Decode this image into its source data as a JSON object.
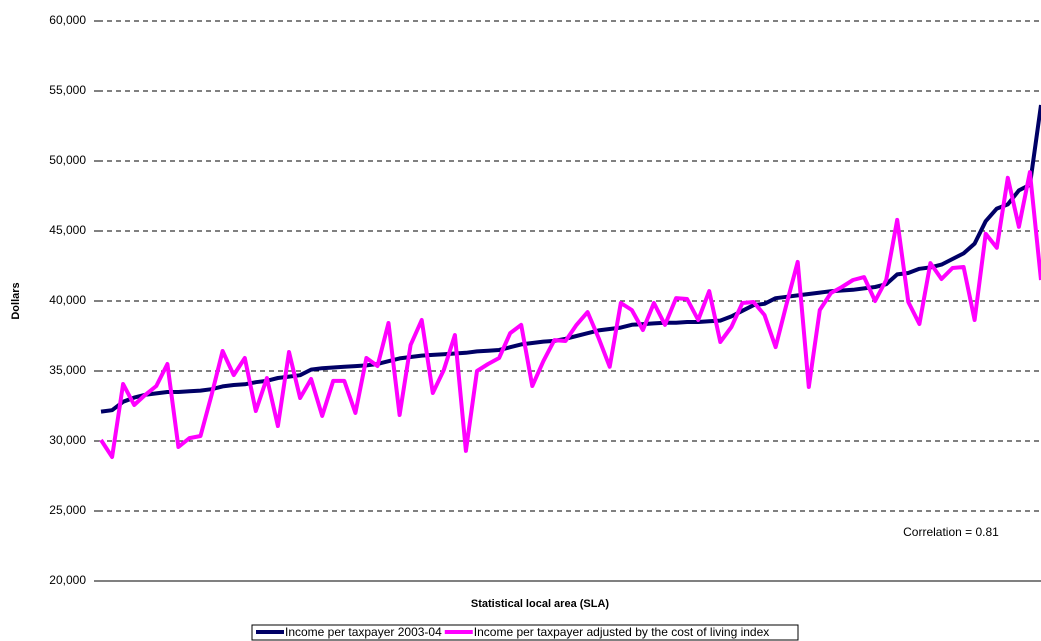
{
  "chart_data": {
    "type": "line",
    "y_label": "Dollars",
    "x_label": "Statistical local area (SLA)",
    "annotation": "Correlation = 0.81",
    "categories": [
      null,
      null,
      null,
      null,
      null,
      null,
      null,
      null,
      null,
      null,
      null,
      null,
      null,
      null,
      null,
      null,
      null,
      null,
      null,
      null,
      null,
      null,
      null,
      null,
      null,
      null,
      null,
      null,
      null,
      null,
      null,
      null,
      null,
      null,
      null,
      null,
      null,
      null,
      null,
      null,
      null,
      null,
      null,
      null,
      null,
      null,
      null,
      null,
      null,
      null,
      null,
      null,
      null,
      null,
      null,
      null,
      null,
      null,
      null,
      null,
      null,
      null,
      null,
      null,
      null,
      null,
      null,
      null,
      null,
      null,
      null,
      null,
      null,
      null,
      null,
      null,
      null,
      null,
      null,
      null,
      null,
      null,
      null,
      null,
      null,
      null
    ],
    "series": [
      {
        "name": "Income per taxpayer 2003-04",
        "color": "#000066",
        "values": [
          32100,
          32200,
          32800,
          33100,
          33300,
          33400,
          33500,
          33500,
          33550,
          33600,
          33700,
          33900,
          34000,
          34050,
          34200,
          34300,
          34500,
          34600,
          34700,
          35100,
          35200,
          35250,
          35300,
          35350,
          35400,
          35500,
          35700,
          35900,
          36000,
          36100,
          36150,
          36200,
          36250,
          36300,
          36400,
          36450,
          36500,
          36700,
          36900,
          37000,
          37100,
          37150,
          37300,
          37500,
          37700,
          37900,
          38000,
          38100,
          38300,
          38350,
          38400,
          38450,
          38450,
          38500,
          38500,
          38550,
          38600,
          38900,
          39300,
          39700,
          39800,
          40200,
          40300,
          40400,
          40500,
          40600,
          40700,
          40750,
          40800,
          40900,
          41000,
          41200,
          41900,
          42000,
          42300,
          42400,
          42600,
          43000,
          43400,
          44100,
          45700,
          46600,
          46900,
          47900,
          48300,
          54000
        ]
      },
      {
        "name": "Income per taxpayer adjusted by the cost of living index",
        "color": "#ff00ff",
        "values": [
          30070,
          28860,
          34070,
          32570,
          33290,
          33930,
          35500,
          29570,
          30210,
          30360,
          33290,
          36430,
          34710,
          35930,
          32140,
          34500,
          31070,
          36360,
          33070,
          34430,
          31790,
          34290,
          34290,
          32000,
          35930,
          35360,
          38430,
          31860,
          36860,
          38640,
          33430,
          35070,
          37570,
          29290,
          35000,
          35500,
          35930,
          37710,
          38290,
          33930,
          35710,
          37210,
          37140,
          38290,
          39210,
          37360,
          35300,
          39860,
          39360,
          37930,
          39860,
          38290,
          40210,
          40140,
          38640,
          40710,
          37070,
          38140,
          39860,
          39930,
          39000,
          36710,
          39790,
          42790,
          33860,
          39360,
          40570,
          41000,
          41500,
          41710,
          40000,
          41500,
          45790,
          39930,
          38360,
          42710,
          41570,
          42360,
          42430,
          38640,
          44800,
          43800,
          48800,
          45300,
          49200,
          41500
        ]
      }
    ],
    "ylim": [
      20000,
      60000
    ],
    "yticks": [
      {
        "value": 20000,
        "label": "20,000"
      },
      {
        "value": 25000,
        "label": "25,000"
      },
      {
        "value": 30000,
        "label": "30,000"
      },
      {
        "value": 35000,
        "label": "35,000"
      },
      {
        "value": 40000,
        "label": "40,000"
      },
      {
        "value": 45000,
        "label": "45,000"
      },
      {
        "value": 50000,
        "label": "50,000"
      },
      {
        "value": 55000,
        "label": "55,000"
      },
      {
        "value": 60000,
        "label": "60,000"
      }
    ],
    "grid": true,
    "legend": "bottom"
  }
}
